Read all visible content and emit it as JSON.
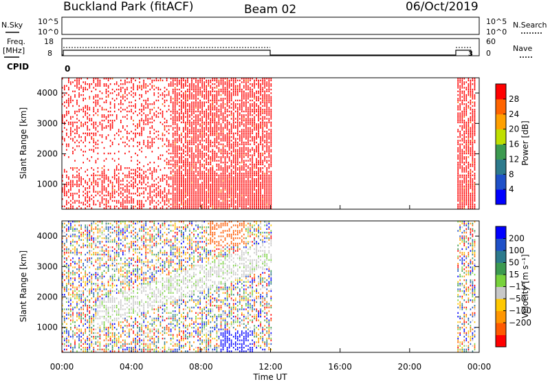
{
  "header": {
    "station": "Buckland Park (fitACF)",
    "beam": "Beam 02",
    "date": "06/Oct/2019"
  },
  "noise_panel": {
    "left_label": "N.Sky",
    "right_label": "N.Search",
    "ticks": [
      "10^5",
      "10^0"
    ]
  },
  "freq_panel": {
    "left_label_1": "Freq.",
    "left_label_2": "[MHz]",
    "left_ticks": [
      "18",
      "8"
    ],
    "right_ticks": [
      "60",
      "0"
    ],
    "right_label": "Nave",
    "cpid_label": "CPID",
    "cpid_value": "0",
    "cpid_value_2": "3"
  },
  "colors": {
    "power": [
      "#0000ff",
      "#1e50c8",
      "#2d7a8c",
      "#3c9a50",
      "#bfdf00",
      "#ffa000",
      "#ff6400",
      "#ff0000"
    ],
    "velocity": [
      "#ff0000",
      "#ff5a00",
      "#ff9600",
      "#ffc800",
      "#c8c8c8",
      "#78d23c",
      "#3c9a50",
      "#2d7a8c",
      "#1e50c8",
      "#0000ff"
    ]
  },
  "chart_data": [
    {
      "type": "heatmap",
      "panel": "power",
      "ylabel": "Slant Range [km]",
      "ylim": [
        180,
        4500
      ],
      "yticks": [
        1000,
        2000,
        3000,
        4000
      ],
      "xlim": [
        0,
        24
      ],
      "colorbar_label": "Power [dB]",
      "colorbar_range": [
        0,
        32
      ],
      "colorbar_ticks": [
        4,
        8,
        12,
        16,
        20,
        24,
        28
      ],
      "data_segments_hours": [
        [
          0,
          12.0
        ],
        [
          22.75,
          23.8
        ]
      ],
      "dominant_value_dB": 30
    },
    {
      "type": "heatmap",
      "panel": "velocity",
      "ylabel": "Slant Range [km]",
      "ylim": [
        180,
        4500
      ],
      "yticks": [
        1000,
        2000,
        3000,
        4000
      ],
      "xlim": [
        0,
        24
      ],
      "xticks": [
        "00:00",
        "04:00",
        "08:00",
        "12:00",
        "16:00",
        "20:00",
        "00:00"
      ],
      "xlabel": "Time UT",
      "colorbar_label": "Velocity [m s⁻¹]",
      "colorbar_ticks": [
        "200",
        "100",
        "50",
        "15",
        "−15",
        "−50",
        "−100",
        "−200"
      ],
      "data_segments_hours": [
        [
          0,
          12.0
        ],
        [
          22.75,
          23.8
        ]
      ]
    }
  ]
}
